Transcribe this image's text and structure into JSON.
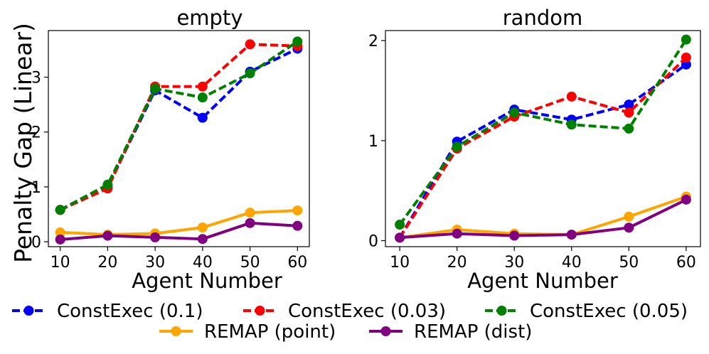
{
  "figure": {
    "ylabel": "Penalty Gap (Linear)"
  },
  "chart_data": [
    {
      "type": "line",
      "title": "empty",
      "xlabel": "Agent Number",
      "ylabel": "Penalty Gap (Linear)",
      "x": [
        10,
        20,
        30,
        40,
        50,
        60
      ],
      "xlim": [
        7.5,
        62.5
      ],
      "ylim": [
        -0.09,
        3.85
      ],
      "xticks": [
        "10",
        "20",
        "30",
        "40",
        "50",
        "60"
      ],
      "yticks": [
        {
          "v": 0,
          "label": "0"
        },
        {
          "v": 1,
          "label": "1"
        },
        {
          "v": 2,
          "label": "2"
        },
        {
          "v": 3,
          "label": "3"
        }
      ],
      "grid": false,
      "series": [
        {
          "name": "ConstExec (0.1)",
          "color": "#0000ff",
          "dashed": true,
          "values": [
            0.58,
            1.0,
            2.76,
            2.26,
            3.1,
            3.52
          ]
        },
        {
          "name": "ConstExec (0.03)",
          "color": "#ff0000",
          "dashed": true,
          "values": [
            0.58,
            0.97,
            2.83,
            2.83,
            3.6,
            3.57
          ]
        },
        {
          "name": "ConstExec (0.05)",
          "color": "#008000",
          "dashed": true,
          "values": [
            0.58,
            1.04,
            2.79,
            2.63,
            3.07,
            3.65
          ]
        },
        {
          "name": "REMAP (point)",
          "color": "#ffa500",
          "dashed": false,
          "values": [
            0.17,
            0.13,
            0.15,
            0.26,
            0.53,
            0.57
          ]
        },
        {
          "name": "REMAP (dist)",
          "color": "#800080",
          "dashed": false,
          "values": [
            0.04,
            0.11,
            0.08,
            0.05,
            0.34,
            0.29
          ]
        }
      ]
    },
    {
      "type": "line",
      "title": "random",
      "xlabel": "Agent Number",
      "ylabel": "",
      "x": [
        10,
        20,
        30,
        40,
        50,
        60
      ],
      "xlim": [
        7.5,
        62.5
      ],
      "ylim": [
        -0.06,
        2.1
      ],
      "xticks": [
        "10",
        "20",
        "30",
        "40",
        "50",
        "60"
      ],
      "yticks": [
        {
          "v": 0,
          "label": "0"
        },
        {
          "v": 1,
          "label": "1"
        },
        {
          "v": 2,
          "label": "2"
        }
      ],
      "grid": false,
      "series": [
        {
          "name": "ConstExec (0.1)",
          "color": "#0000ff",
          "dashed": true,
          "values": [
            0.03,
            0.99,
            1.31,
            1.21,
            1.36,
            1.76
          ]
        },
        {
          "name": "ConstExec (0.03)",
          "color": "#ff0000",
          "dashed": true,
          "values": [
            0.03,
            0.92,
            1.24,
            1.44,
            1.28,
            1.83
          ]
        },
        {
          "name": "ConstExec (0.05)",
          "color": "#008000",
          "dashed": true,
          "values": [
            0.16,
            0.94,
            1.28,
            1.16,
            1.12,
            2.01
          ]
        },
        {
          "name": "REMAP (point)",
          "color": "#ffa500",
          "dashed": false,
          "values": [
            0.03,
            0.11,
            0.07,
            0.06,
            0.24,
            0.44
          ]
        },
        {
          "name": "REMAP (dist)",
          "color": "#800080",
          "dashed": false,
          "values": [
            0.03,
            0.07,
            0.05,
            0.06,
            0.13,
            0.41
          ]
        }
      ]
    }
  ],
  "legend": {
    "placement": "bottom-center",
    "items": [
      {
        "label": "ConstExec (0.1)",
        "color": "#0000ff",
        "dashed": true
      },
      {
        "label": "ConstExec (0.03)",
        "color": "#ff0000",
        "dashed": true
      },
      {
        "label": "ConstExec (0.05)",
        "color": "#008000",
        "dashed": true
      },
      {
        "label": "REMAP (point)",
        "color": "#ffa500",
        "dashed": false
      },
      {
        "label": "REMAP (dist)",
        "color": "#800080",
        "dashed": false
      }
    ]
  }
}
